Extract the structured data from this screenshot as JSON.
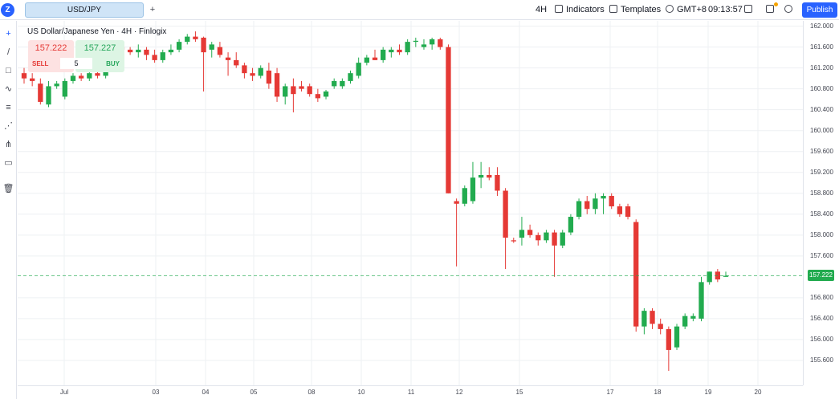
{
  "topbar": {
    "logo": "Z",
    "symbol_tab": "USD/JPY",
    "add_tab": "+",
    "interval": "4H",
    "indicators": "Indicators",
    "templates": "Templates",
    "timezone": "GMT+8",
    "clock": "09:13:57",
    "publish": "Publish",
    "icons": [
      "indicators-icon",
      "templates-icon",
      "globe-icon",
      "screenshot-icon",
      "layout-icon",
      "settings-icon"
    ]
  },
  "legend": {
    "title": "US Dollar/Japanese Yen · 4H · Finlogix"
  },
  "trade": {
    "sell_price": "157.222",
    "buy_price": "157.227",
    "sell_label": "SELL",
    "buy_label": "BUY",
    "quantity": "5"
  },
  "left_tools": [
    "crosshair-icon",
    "trendline-icon",
    "rectangle-icon",
    "path-icon",
    "fib-icon",
    "gann-icon",
    "pitchfork-icon",
    "text-note-icon",
    "trash-icon"
  ],
  "price_axis": {
    "labels": [
      "162.000",
      "161.600",
      "161.200",
      "160.800",
      "160.400",
      "160.000",
      "159.600",
      "159.200",
      "158.800",
      "158.400",
      "158.000",
      "157.600",
      "156.800",
      "156.400",
      "156.000",
      "155.600"
    ],
    "current_price": "157.222"
  },
  "time_axis": {
    "labels": [
      "Jul",
      "03",
      "04",
      "05",
      "08",
      "10",
      "11",
      "12",
      "15",
      "17",
      "18",
      "19",
      "20"
    ]
  },
  "colors": {
    "up": "#22ab4f",
    "down": "#e53935",
    "accent": "#2962ff",
    "grid": "#eef0f3"
  },
  "chart_data": {
    "type": "candlestick",
    "symbol": "USD/JPY",
    "interval": "4H",
    "ylim": [
      155.3,
      162.15
    ],
    "current_price": 157.222,
    "candles": [
      {
        "o": 161.1,
        "h": 161.2,
        "l": 160.9,
        "c": 161.0
      },
      {
        "o": 161.0,
        "h": 161.1,
        "l": 160.85,
        "c": 160.95
      },
      {
        "o": 160.9,
        "h": 161.0,
        "l": 160.5,
        "c": 160.55
      },
      {
        "o": 160.5,
        "h": 160.95,
        "l": 160.45,
        "c": 160.85
      },
      {
        "o": 160.85,
        "h": 160.95,
        "l": 160.8,
        "c": 160.9
      },
      {
        "o": 160.65,
        "h": 161.0,
        "l": 160.6,
        "c": 160.95
      },
      {
        "o": 160.95,
        "h": 161.1,
        "l": 160.9,
        "c": 161.05
      },
      {
        "o": 161.05,
        "h": 161.1,
        "l": 160.95,
        "c": 161.0
      },
      {
        "o": 161.0,
        "h": 161.15,
        "l": 160.95,
        "c": 161.1
      },
      {
        "o": 161.1,
        "h": 161.2,
        "l": 161.0,
        "c": 161.05
      },
      {
        "o": 161.05,
        "h": 161.3,
        "l": 161.0,
        "c": 161.25
      },
      {
        "o": 161.25,
        "h": 161.65,
        "l": 161.2,
        "c": 161.6
      },
      {
        "o": 161.6,
        "h": 161.7,
        "l": 161.45,
        "c": 161.55
      },
      {
        "o": 161.55,
        "h": 161.6,
        "l": 161.45,
        "c": 161.5
      },
      {
        "o": 161.5,
        "h": 161.65,
        "l": 161.4,
        "c": 161.55
      },
      {
        "o": 161.55,
        "h": 161.6,
        "l": 161.35,
        "c": 161.45
      },
      {
        "o": 161.45,
        "h": 161.55,
        "l": 161.3,
        "c": 161.35
      },
      {
        "o": 161.35,
        "h": 161.55,
        "l": 161.3,
        "c": 161.5
      },
      {
        "o": 161.5,
        "h": 161.65,
        "l": 161.45,
        "c": 161.55
      },
      {
        "o": 161.55,
        "h": 161.75,
        "l": 161.5,
        "c": 161.7
      },
      {
        "o": 161.7,
        "h": 161.85,
        "l": 161.65,
        "c": 161.8
      },
      {
        "o": 161.8,
        "h": 161.9,
        "l": 161.7,
        "c": 161.75
      },
      {
        "o": 161.78,
        "h": 161.8,
        "l": 160.75,
        "c": 161.5
      },
      {
        "o": 161.55,
        "h": 161.7,
        "l": 161.4,
        "c": 161.65
      },
      {
        "o": 161.6,
        "h": 161.7,
        "l": 161.4,
        "c": 161.45
      },
      {
        "o": 161.4,
        "h": 161.5,
        "l": 161.05,
        "c": 161.35
      },
      {
        "o": 161.35,
        "h": 161.5,
        "l": 161.2,
        "c": 161.25
      },
      {
        "o": 161.25,
        "h": 161.3,
        "l": 161.0,
        "c": 161.1
      },
      {
        "o": 161.1,
        "h": 161.2,
        "l": 160.95,
        "c": 161.05
      },
      {
        "o": 161.05,
        "h": 161.25,
        "l": 161.0,
        "c": 161.2
      },
      {
        "o": 161.15,
        "h": 161.3,
        "l": 160.8,
        "c": 160.9
      },
      {
        "o": 161.1,
        "h": 161.2,
        "l": 160.55,
        "c": 160.65
      },
      {
        "o": 160.65,
        "h": 160.9,
        "l": 160.5,
        "c": 160.85
      },
      {
        "o": 160.85,
        "h": 161.0,
        "l": 160.35,
        "c": 160.7
      },
      {
        "o": 160.85,
        "h": 160.95,
        "l": 160.75,
        "c": 160.8
      },
      {
        "o": 160.85,
        "h": 160.9,
        "l": 160.65,
        "c": 160.7
      },
      {
        "o": 160.7,
        "h": 160.8,
        "l": 160.55,
        "c": 160.62
      },
      {
        "o": 160.65,
        "h": 160.78,
        "l": 160.6,
        "c": 160.75
      },
      {
        "o": 160.85,
        "h": 161.0,
        "l": 160.8,
        "c": 160.95
      },
      {
        "o": 160.85,
        "h": 161.0,
        "l": 160.8,
        "c": 160.95
      },
      {
        "o": 160.95,
        "h": 161.15,
        "l": 160.9,
        "c": 161.1
      },
      {
        "o": 161.05,
        "h": 161.4,
        "l": 161.0,
        "c": 161.3
      },
      {
        "o": 161.3,
        "h": 161.45,
        "l": 161.25,
        "c": 161.4
      },
      {
        "o": 161.4,
        "h": 161.55,
        "l": 161.35,
        "c": 161.35
      },
      {
        "o": 161.35,
        "h": 161.6,
        "l": 161.3,
        "c": 161.55
      },
      {
        "o": 161.5,
        "h": 161.6,
        "l": 161.4,
        "c": 161.55
      },
      {
        "o": 161.55,
        "h": 161.65,
        "l": 161.45,
        "c": 161.5
      },
      {
        "o": 161.5,
        "h": 161.75,
        "l": 161.45,
        "c": 161.7
      },
      {
        "o": 161.7,
        "h": 161.78,
        "l": 161.6,
        "c": 161.72
      },
      {
        "o": 161.6,
        "h": 161.75,
        "l": 161.55,
        "c": 161.65
      },
      {
        "o": 161.65,
        "h": 161.78,
        "l": 161.55,
        "c": 161.75
      },
      {
        "o": 161.75,
        "h": 161.78,
        "l": 161.55,
        "c": 161.6
      },
      {
        "o": 161.6,
        "h": 161.65,
        "l": 158.8,
        "c": 158.8
      },
      {
        "o": 158.65,
        "h": 158.7,
        "l": 157.4,
        "c": 158.6
      },
      {
        "o": 158.6,
        "h": 158.95,
        "l": 158.55,
        "c": 158.9
      },
      {
        "o": 158.65,
        "h": 159.4,
        "l": 158.6,
        "c": 159.1
      },
      {
        "o": 159.1,
        "h": 159.4,
        "l": 158.9,
        "c": 159.15
      },
      {
        "o": 159.15,
        "h": 159.3,
        "l": 159.05,
        "c": 159.1
      },
      {
        "o": 159.15,
        "h": 159.3,
        "l": 158.75,
        "c": 158.85
      },
      {
        "o": 158.85,
        "h": 158.9,
        "l": 157.35,
        "c": 157.95
      },
      {
        "o": 157.9,
        "h": 157.95,
        "l": 157.85,
        "c": 157.88
      },
      {
        "o": 157.95,
        "h": 158.35,
        "l": 157.8,
        "c": 158.1
      },
      {
        "o": 158.1,
        "h": 158.2,
        "l": 157.95,
        "c": 158.0
      },
      {
        "o": 158.0,
        "h": 158.05,
        "l": 157.8,
        "c": 157.9
      },
      {
        "o": 157.9,
        "h": 158.1,
        "l": 157.85,
        "c": 158.05
      },
      {
        "o": 158.05,
        "h": 158.1,
        "l": 157.2,
        "c": 157.8
      },
      {
        "o": 157.8,
        "h": 158.1,
        "l": 157.75,
        "c": 158.05
      },
      {
        "o": 158.05,
        "h": 158.4,
        "l": 158.0,
        "c": 158.35
      },
      {
        "o": 158.35,
        "h": 158.7,
        "l": 158.3,
        "c": 158.65
      },
      {
        "o": 158.65,
        "h": 158.75,
        "l": 158.4,
        "c": 158.5
      },
      {
        "o": 158.5,
        "h": 158.8,
        "l": 158.4,
        "c": 158.7
      },
      {
        "o": 158.7,
        "h": 158.8,
        "l": 158.4,
        "c": 158.75
      },
      {
        "o": 158.75,
        "h": 158.8,
        "l": 158.5,
        "c": 158.55
      },
      {
        "o": 158.55,
        "h": 158.6,
        "l": 158.35,
        "c": 158.4
      },
      {
        "o": 158.55,
        "h": 158.6,
        "l": 158.3,
        "c": 158.35
      },
      {
        "o": 158.25,
        "h": 158.3,
        "l": 156.15,
        "c": 156.25
      },
      {
        "o": 156.25,
        "h": 156.6,
        "l": 156.1,
        "c": 156.55
      },
      {
        "o": 156.55,
        "h": 156.6,
        "l": 156.2,
        "c": 156.3
      },
      {
        "o": 156.3,
        "h": 156.4,
        "l": 156.1,
        "c": 156.2
      },
      {
        "o": 156.2,
        "h": 156.25,
        "l": 155.4,
        "c": 155.8
      },
      {
        "o": 155.85,
        "h": 156.3,
        "l": 155.8,
        "c": 156.25
      },
      {
        "o": 156.25,
        "h": 156.5,
        "l": 156.2,
        "c": 156.45
      },
      {
        "o": 156.4,
        "h": 156.5,
        "l": 156.35,
        "c": 156.45
      },
      {
        "o": 156.4,
        "h": 157.2,
        "l": 156.35,
        "c": 157.1
      },
      {
        "o": 157.1,
        "h": 157.3,
        "l": 157.05,
        "c": 157.3
      },
      {
        "o": 157.3,
        "h": 157.35,
        "l": 157.1,
        "c": 157.15
      },
      {
        "o": 157.2,
        "h": 157.3,
        "l": 157.2,
        "c": 157.22
      }
    ]
  }
}
